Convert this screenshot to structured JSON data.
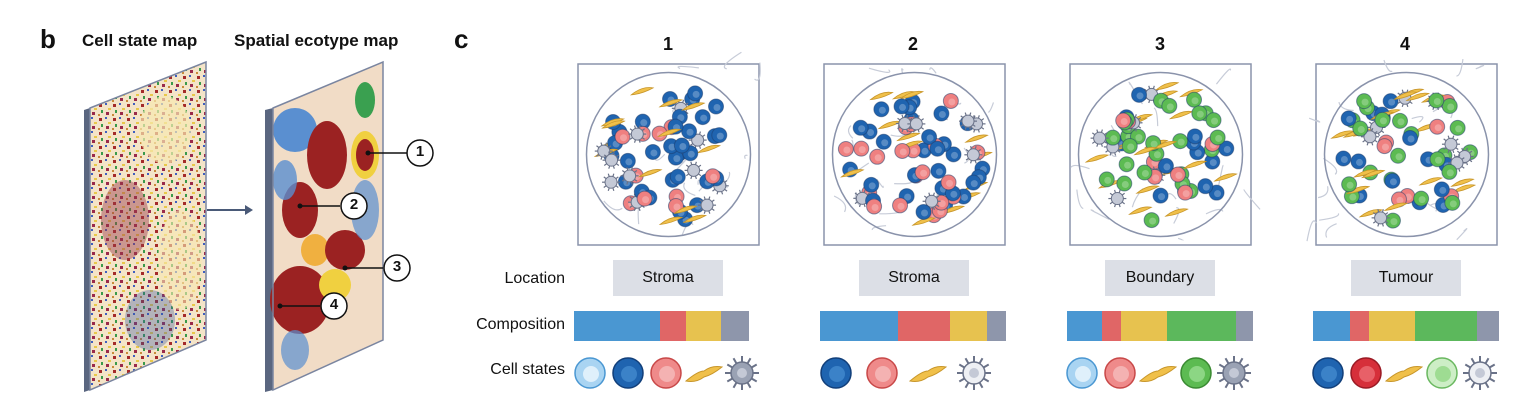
{
  "panel_b": {
    "letter": "b",
    "left_title": "Cell state map",
    "right_title": "Spatial ecotype map",
    "callouts": [
      "1",
      "2",
      "3",
      "4"
    ]
  },
  "panel_c": {
    "letter": "c",
    "row_labels": {
      "location": "Location",
      "composition": "Composition",
      "cell_states": "Cell states"
    },
    "ecotypes": [
      {
        "number": "1",
        "location": "Stroma",
        "composition": [
          0.46,
          0.14,
          0.19,
          0.15
        ],
        "composition_colors": [
          "#4a97d2",
          "#e06666",
          "#e7c24f",
          "#8e96ab"
        ],
        "cell_states": [
          "light-blue-cell",
          "dark-blue-cell",
          "pink-cell",
          "fibroblast",
          "grey-spiky-cell"
        ]
      },
      {
        "number": "2",
        "location": "Stroma",
        "composition": [
          0.42,
          0.28,
          0.2,
          0.1
        ],
        "composition_colors": [
          "#4a97d2",
          "#e06666",
          "#e7c24f",
          "#8e96ab"
        ],
        "cell_states": [
          "dark-blue-cell",
          "pink-cell",
          "fibroblast",
          "white-spiky-cell"
        ]
      },
      {
        "number": "3",
        "location": "Boundary",
        "composition": [
          0.19,
          0.1,
          0.25,
          0.37,
          0.09
        ],
        "composition_colors": [
          "#4a97d2",
          "#e06666",
          "#e7c24f",
          "#5cb85c",
          "#8e96ab"
        ],
        "cell_states": [
          "light-blue-cell",
          "pink-cell",
          "fibroblast",
          "green-cell",
          "grey-spiky-cell"
        ]
      },
      {
        "number": "4",
        "location": "Tumour",
        "composition": [
          0.2,
          0.1,
          0.25,
          0.33,
          0.12
        ],
        "composition_colors": [
          "#4a97d2",
          "#e06666",
          "#e7c24f",
          "#5cb85c",
          "#8e96ab"
        ],
        "cell_states": [
          "dark-blue-cell",
          "red-cell",
          "fibroblast",
          "light-green-cell",
          "white-spiky-cell"
        ]
      }
    ]
  }
}
